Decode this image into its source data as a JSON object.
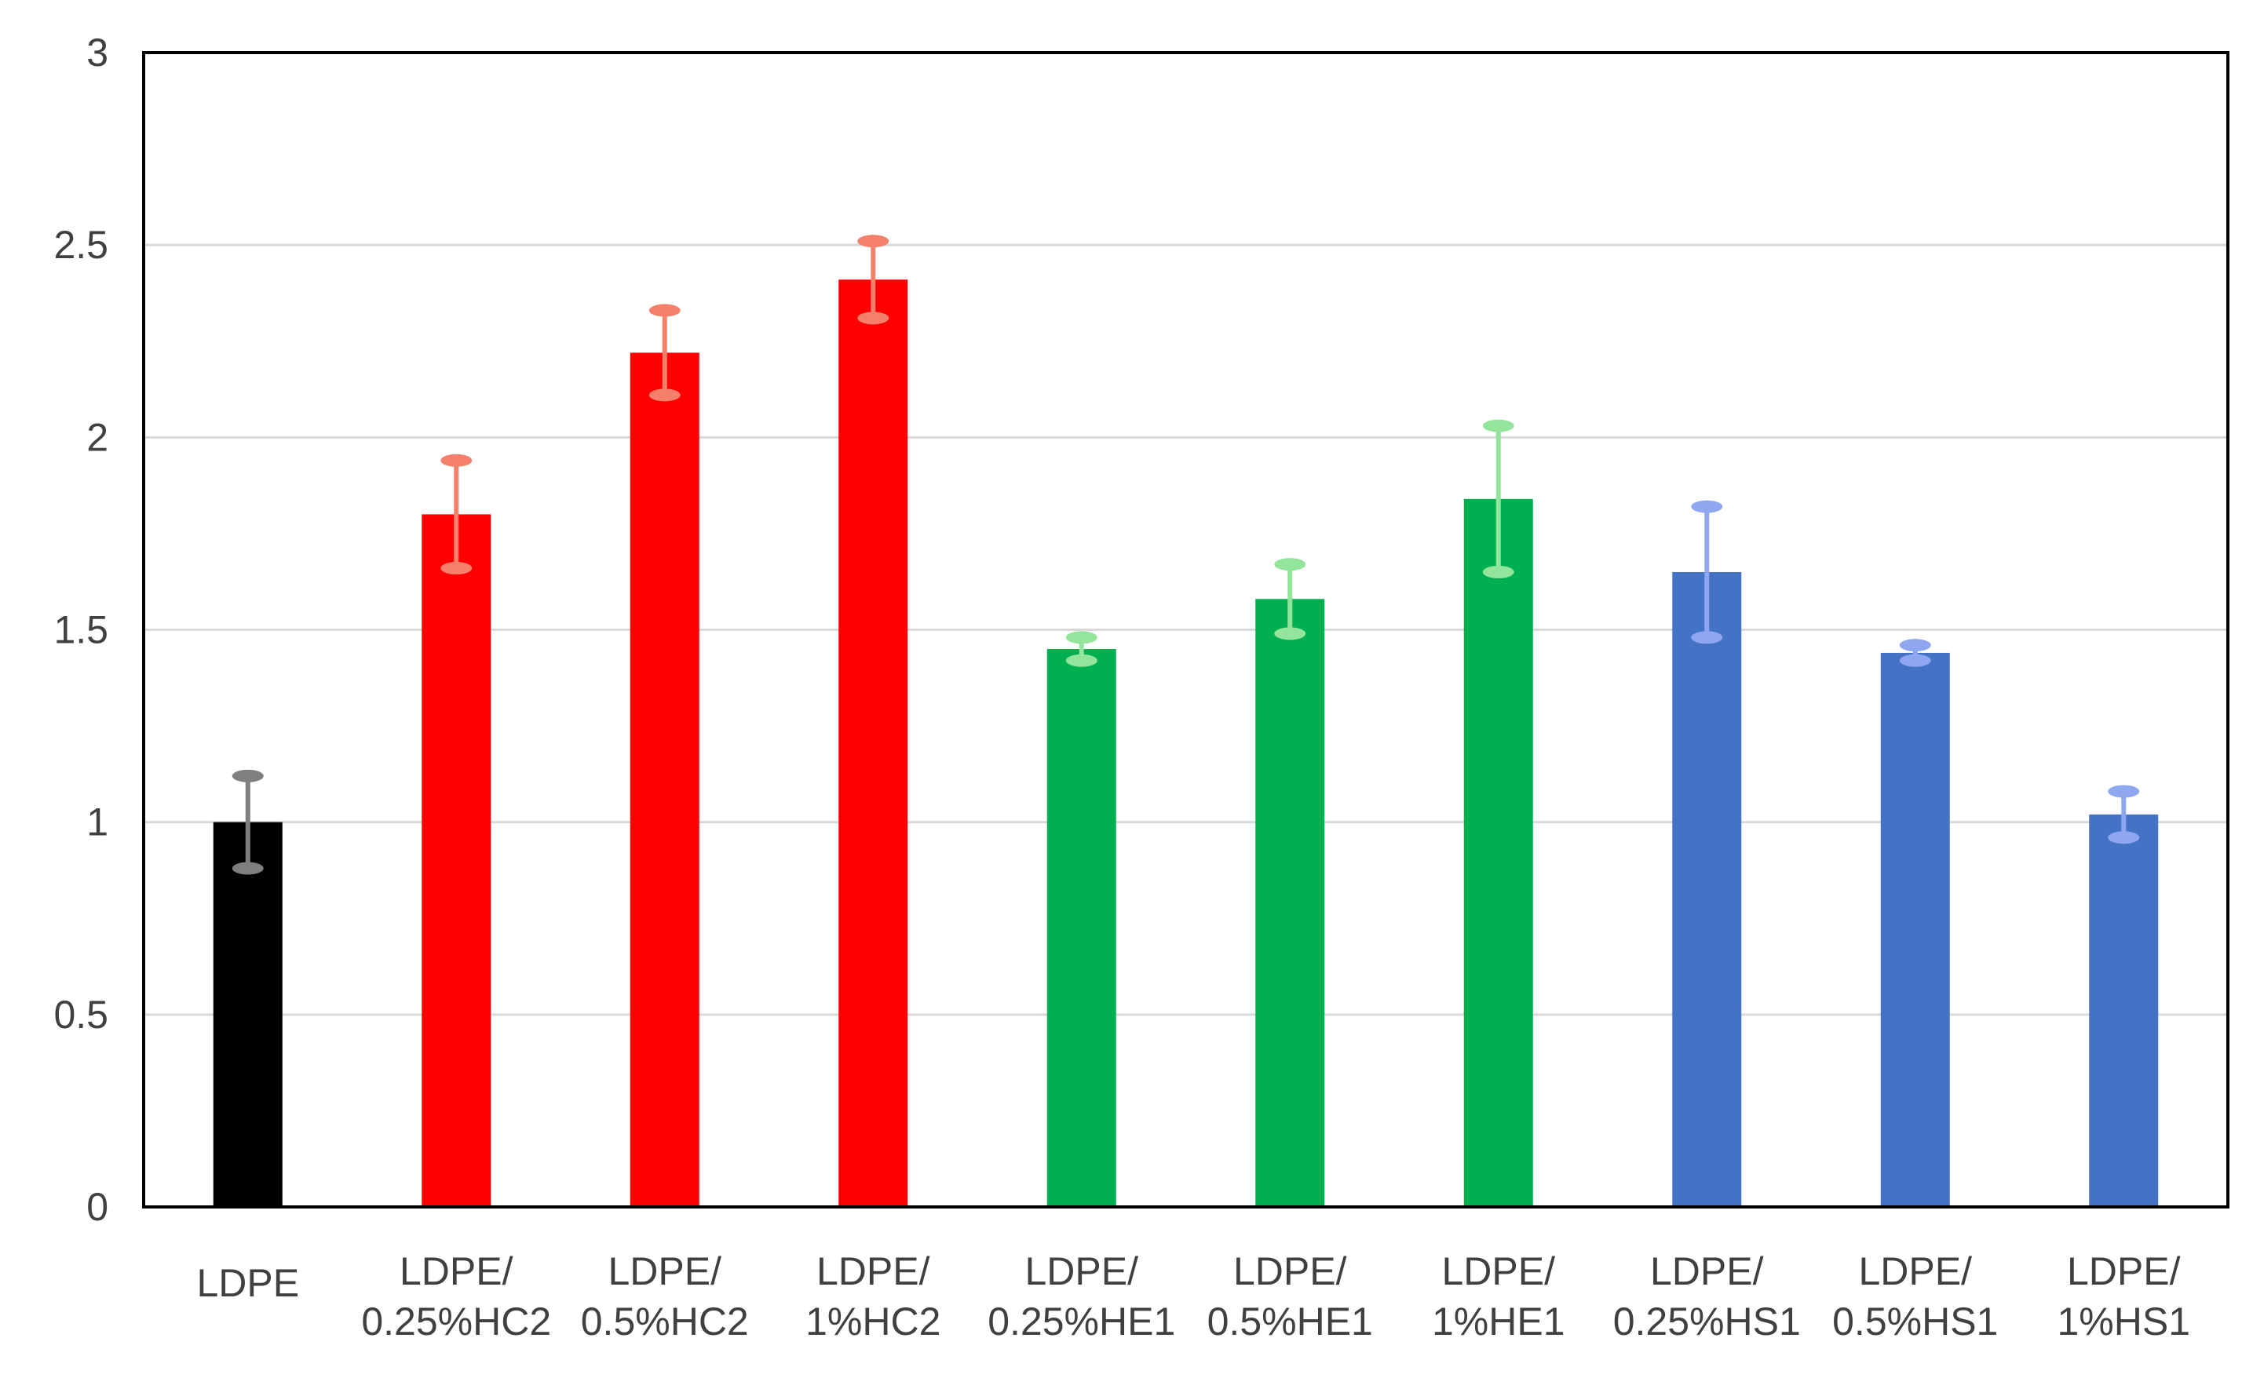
{
  "chart_data": {
    "type": "bar",
    "title": "",
    "xlabel": "",
    "ylabel": "",
    "ylim": [
      0,
      3
    ],
    "yticks": [
      0,
      0.5,
      1,
      1.5,
      2,
      2.5,
      3
    ],
    "ytick_labels": [
      "0",
      "0.5",
      "1",
      "1.5",
      "2",
      "2.5",
      "3"
    ],
    "grid": true,
    "categories": [
      {
        "line1": "LDPE",
        "line2": ""
      },
      {
        "line1": "LDPE/",
        "line2": "0.25%HC2"
      },
      {
        "line1": "LDPE/",
        "line2": "0.5%HC2"
      },
      {
        "line1": "LDPE/",
        "line2": "1%HC2"
      },
      {
        "line1": "LDPE/",
        "line2": "0.25%HE1"
      },
      {
        "line1": "LDPE/",
        "line2": "0.5%HE1"
      },
      {
        "line1": "LDPE/",
        "line2": "1%HE1"
      },
      {
        "line1": "LDPE/",
        "line2": "0.25%HS1"
      },
      {
        "line1": "LDPE/",
        "line2": "0.5%HS1"
      },
      {
        "line1": "LDPE/",
        "line2": "1%HS1"
      }
    ],
    "values": [
      1.0,
      1.8,
      2.22,
      2.41,
      1.45,
      1.58,
      1.84,
      1.65,
      1.44,
      1.02
    ],
    "errors": [
      0.12,
      0.14,
      0.11,
      0.1,
      0.03,
      0.09,
      0.19,
      0.17,
      0.02,
      0.06
    ],
    "bar_colors": [
      "#000000",
      "#ff0000",
      "#ff0000",
      "#ff0000",
      "#00b050",
      "#00b050",
      "#00b050",
      "#4472c4",
      "#4472c4",
      "#4472c4"
    ],
    "error_colors": [
      "#7f7f7f",
      "#f4806b",
      "#f4806b",
      "#f4806b",
      "#92e59a",
      "#92e59a",
      "#92e59a",
      "#8ea7f0",
      "#8ea7f0",
      "#8ea7f0"
    ],
    "gridline_color": "#d9d9d9",
    "axis_color": "#000000"
  }
}
